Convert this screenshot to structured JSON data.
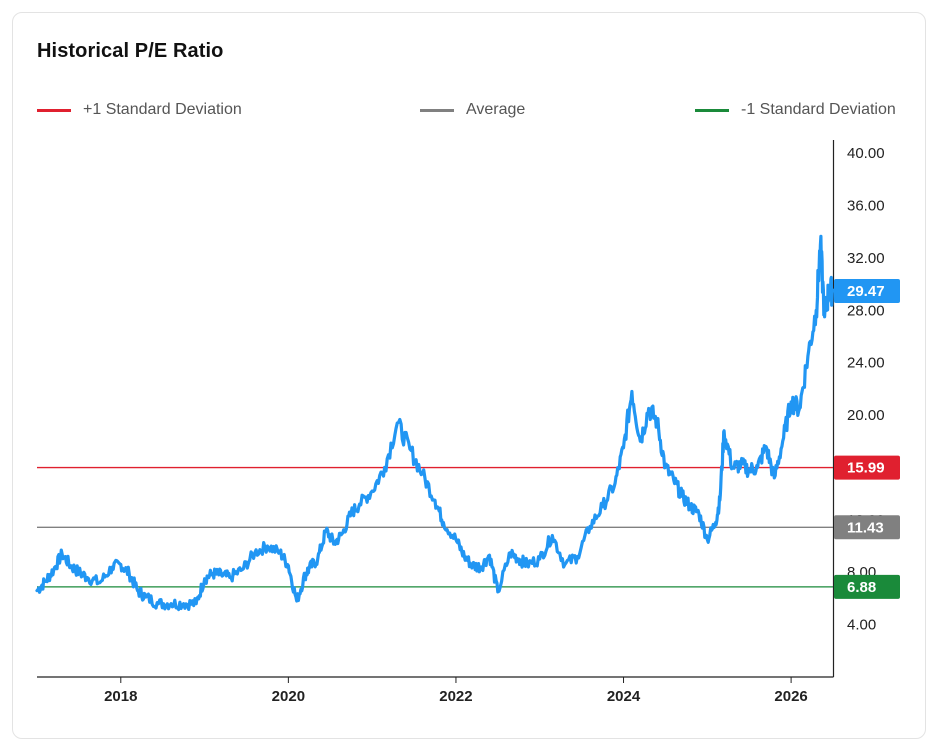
{
  "title": "Historical P/E Ratio",
  "legend": [
    {
      "label": "+1 Standard Deviation",
      "color": "#e0202f"
    },
    {
      "label": "Average",
      "color": "#808080"
    },
    {
      "label": "-1 Standard Deviation",
      "color": "#1a8a3a"
    }
  ],
  "chart_data": {
    "type": "line",
    "title": "Historical P/E Ratio",
    "xlabel": "",
    "ylabel": "",
    "xlim": [
      2017.0,
      2026.5
    ],
    "ylim": [
      0,
      41
    ],
    "x_ticks": [
      "2018",
      "2020",
      "2022",
      "2024",
      "2026"
    ],
    "y_ticks": [
      "4.00",
      "8.00",
      "12.00",
      "16.00",
      "20.00",
      "24.00",
      "28.00",
      "32.00",
      "36.00",
      "40.00"
    ],
    "legend_position": "top",
    "grid": false,
    "reference_lines": [
      {
        "name": "+1 Standard Deviation",
        "value": 15.99,
        "label": "15.99",
        "color": "#e0202f"
      },
      {
        "name": "Average",
        "value": 11.43,
        "label": "11.43",
        "color": "#808080"
      },
      {
        "name": "-1 Standard Deviation",
        "value": 6.88,
        "label": "6.88",
        "color": "#1a8a3a"
      }
    ],
    "current": {
      "value": 29.47,
      "label": "29.47",
      "color": "#2196f3"
    },
    "series": [
      {
        "color": "#2196f3",
        "x": [
          2017.0,
          2017.1,
          2017.2,
          2017.3,
          2017.4,
          2017.5,
          2017.6,
          2017.75,
          2017.9,
          2018.0,
          2018.1,
          2018.2,
          2018.3,
          2018.45,
          2018.6,
          2018.75,
          2018.9,
          2019.0,
          2019.1,
          2019.2,
          2019.3,
          2019.45,
          2019.6,
          2019.75,
          2019.9,
          2020.0,
          2020.1,
          2020.2,
          2020.25,
          2020.35,
          2020.45,
          2020.55,
          2020.65,
          2020.75,
          2020.85,
          2021.0,
          2021.15,
          2021.3,
          2021.45,
          2021.6,
          2021.75,
          2021.85,
          2022.0,
          2022.1,
          2022.2,
          2022.3,
          2022.4,
          2022.5,
          2022.65,
          2022.75,
          2022.85,
          2023.0,
          2023.15,
          2023.3,
          2023.45,
          2023.6,
          2023.75,
          2023.9,
          2024.0,
          2024.1,
          2024.2,
          2024.3,
          2024.4,
          2024.5,
          2024.6,
          2024.7,
          2024.8,
          2024.9,
          2025.0,
          2025.1,
          2025.15,
          2025.2,
          2025.3,
          2025.4,
          2025.5,
          2025.6,
          2025.7,
          2025.8,
          2025.9,
          2026.0,
          2026.1,
          2026.2,
          2026.3,
          2026.35,
          2026.4,
          2026.45,
          2026.5
        ],
        "values": [
          6.6,
          7.3,
          8.2,
          9.4,
          8.5,
          8.0,
          7.6,
          7.2,
          8.4,
          8.6,
          7.9,
          6.6,
          6.1,
          5.6,
          5.6,
          5.6,
          5.6,
          7.5,
          7.9,
          7.8,
          7.6,
          8.2,
          9.5,
          10.0,
          9.5,
          8.5,
          5.8,
          7.8,
          8.3,
          9.0,
          11.2,
          10.2,
          11.0,
          12.5,
          13.2,
          14.2,
          16.0,
          19.4,
          17.4,
          15.5,
          13.5,
          11.8,
          10.5,
          9.2,
          8.5,
          8.4,
          9.3,
          6.5,
          9.5,
          9.0,
          8.6,
          9.0,
          10.8,
          8.6,
          9.2,
          11.5,
          13.0,
          14.8,
          17.5,
          21.8,
          18.0,
          20.5,
          19.5,
          16.0,
          15.0,
          13.8,
          13.0,
          12.5,
          10.5,
          11.8,
          13.5,
          18.8,
          16.0,
          16.2,
          15.8,
          16.0,
          17.6,
          15.2,
          18.0,
          21.0,
          20.5,
          24.5,
          28.0,
          33.0,
          27.5,
          29.5,
          29.47
        ]
      }
    ]
  }
}
